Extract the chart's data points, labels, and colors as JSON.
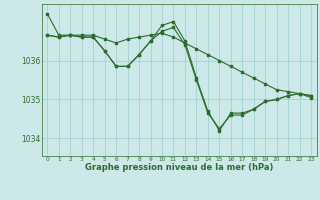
{
  "title": "Graphe pression niveau de la mer (hPa)",
  "background_color": "#cce8e8",
  "grid_color": "#aad4d4",
  "line_color": "#2d6b2d",
  "x_ticks": [
    0,
    1,
    2,
    3,
    4,
    5,
    6,
    7,
    8,
    9,
    10,
    11,
    12,
    13,
    14,
    15,
    16,
    17,
    18,
    19,
    20,
    21,
    22,
    23
  ],
  "y_ticks": [
    1034,
    1035,
    1036
  ],
  "ylim": [
    1033.55,
    1037.45
  ],
  "xlim": [
    -0.5,
    23.5
  ],
  "series": [
    [
      1037.2,
      1036.65,
      1036.65,
      1036.65,
      1036.65,
      1036.55,
      1036.45,
      1036.55,
      1036.6,
      1036.65,
      1036.7,
      1036.6,
      1036.45,
      1036.3,
      1036.15,
      1036.0,
      1035.85,
      1035.7,
      1035.55,
      1035.4,
      1035.25,
      1035.2,
      1035.15,
      1035.1
    ],
    [
      1036.65,
      1036.6,
      1036.65,
      1036.6,
      1036.6,
      1036.25,
      1035.85,
      1035.85,
      1036.15,
      1036.5,
      1036.9,
      1037.0,
      1036.5,
      1035.55,
      1034.7,
      1034.2,
      1034.65,
      1034.65,
      1034.75,
      1034.95,
      1035.0,
      1035.1,
      1035.15,
      1035.1
    ],
    [
      1036.65,
      1036.6,
      1036.65,
      1036.6,
      1036.6,
      1036.25,
      1035.85,
      1035.85,
      1036.15,
      1036.5,
      1036.75,
      1036.85,
      1036.4,
      1035.5,
      1034.65,
      1034.25,
      1034.6,
      1034.6,
      1034.75,
      1034.95,
      1035.0,
      1035.1,
      1035.15,
      1035.05
    ]
  ]
}
